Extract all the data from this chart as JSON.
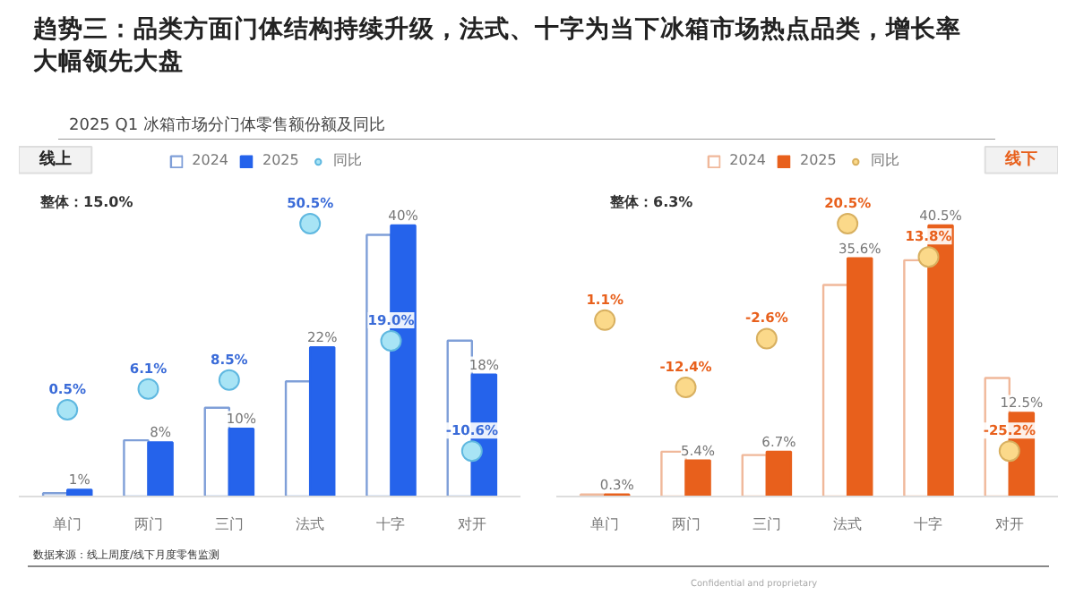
{
  "chart_data": [
    {
      "type": "bar",
      "title": "趋势三：品类方面门体结构持续升级，法式、十字为当下冰箱市场热点品类，增长率大幅领先大盘",
      "subtitle": "2025 Q1 冰箱市场分门体零售额份额及同比",
      "annotations": [
        "线上",
        "整体：15.0%",
        "数据来源：线上周度/线下月度零售监测",
        "Confidential and proprietary"
      ],
      "categories": [
        "单门",
        "两门",
        "三门",
        "法式",
        "十字",
        "对开"
      ],
      "tick_labels": "x",
      "grid": false,
      "legend": "top",
      "marker": "circle",
      "series": [
        {
          "name": "2024",
          "color": "#7f9fd8",
          "values": [
            0.5,
            8.3,
            13.1,
            17,
            38.6,
            23
          ]
        },
        {
          "name": "2025",
          "color": "#2563eb",
          "values": [
            1,
            8,
            10,
            22,
            40,
            18
          ],
          "value_labels": [
            "1%",
            "8%",
            "10%",
            "22%",
            "40%",
            "18%"
          ]
        },
        {
          "name": "同比",
          "type": "scatter",
          "axis": "y2",
          "color": "#a8e4f5",
          "values": [
            0.5,
            6.1,
            8.5,
            50.5,
            19.0,
            -10.6
          ],
          "value_labels": [
            "0.5%",
            "6.1%",
            "8.5%",
            "50.5%",
            "19.0%",
            "-10.6%"
          ]
        }
      ]
    },
    {
      "type": "bar",
      "annotations": [
        "线下",
        "整体：6.3%"
      ],
      "categories": [
        "单门",
        "两门",
        "三门",
        "法式",
        "十字",
        "对开"
      ],
      "tick_labels": "x",
      "grid": false,
      "legend": "top",
      "marker": "circle",
      "series": [
        {
          "name": "2024",
          "color": "#f0b89a",
          "values": [
            0.3,
            6.7,
            6.2,
            31.6,
            35.3,
            17.7
          ]
        },
        {
          "name": "2025",
          "color": "#e8601c",
          "values": [
            0.3,
            5.4,
            6.7,
            35.6,
            40.5,
            12.5
          ],
          "value_labels": [
            "0.3%",
            "5.4%",
            "6.7%",
            "35.6%",
            "40.5%",
            "12.5%"
          ]
        },
        {
          "name": "同比",
          "type": "scatter",
          "axis": "y2",
          "color": "#fbd98a",
          "values": [
            1.1,
            -12.4,
            -2.6,
            20.5,
            13.8,
            -25.2
          ],
          "value_labels": [
            "1.1%",
            "-12.4%",
            "-2.6%",
            "20.5%",
            "13.8%",
            "-25.2%"
          ]
        }
      ]
    }
  ]
}
